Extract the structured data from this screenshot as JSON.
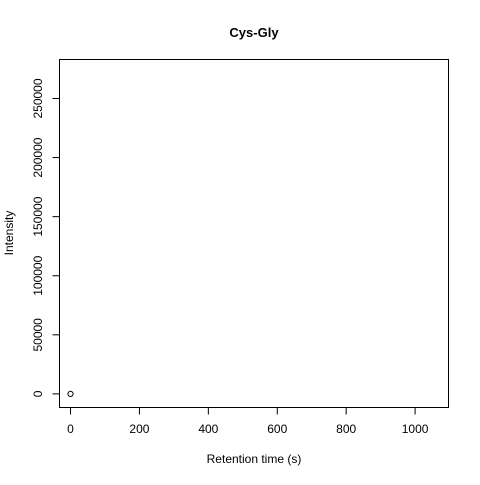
{
  "chart_data": {
    "type": "scatter",
    "title": "Cys-Gly",
    "xlabel": "Retention time (s)",
    "ylabel": "Intensity",
    "xlim": [
      -32,
      1097
    ],
    "ylim": [
      -11500,
      283000
    ],
    "x_ticks": [
      0,
      200,
      400,
      600,
      800,
      1000
    ],
    "y_ticks": [
      0,
      50000,
      100000,
      150000,
      200000,
      250000
    ],
    "points": [
      {
        "x": 0,
        "y": 0
      }
    ],
    "grid": false,
    "legend": "none",
    "marker": "open-circle",
    "colors": {
      "axis": "#000000",
      "marker": "#000000",
      "background": "#ffffff"
    }
  }
}
